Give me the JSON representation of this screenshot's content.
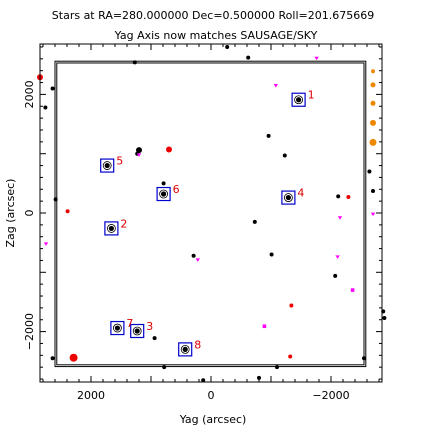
{
  "chart_data": {
    "type": "scatter",
    "title": "Stars at RA=280.000000 Dec=0.500000 Roll=201.675669",
    "subtitle": "Yag Axis now matches SAUSAGE/SKY",
    "xlabel": "Yag (arcsec)",
    "ylabel": "Zag (arcsec)",
    "xlim": [
      2850,
      -2850
    ],
    "ylim": [
      -2850,
      2850
    ],
    "x_ticks": [
      {
        "value": 2000,
        "label": "2000"
      },
      {
        "value": 0,
        "label": "0"
      },
      {
        "value": -2000,
        "label": "−2000"
      }
    ],
    "y_ticks": [
      {
        "value": 2000,
        "label": "2000"
      },
      {
        "value": 0,
        "label": "0"
      },
      {
        "value": -2000,
        "label": "−2000"
      }
    ],
    "detector_outer": {
      "yag": [
        2600,
        -2580
      ],
      "zag": [
        2560,
        -2590
      ]
    },
    "detector_inner": {
      "yag": [
        2570,
        -2550
      ],
      "zag": [
        2530,
        -2560
      ]
    },
    "colors": {
      "guide_star": "#000000",
      "selected_box": "#0000cc",
      "selected_label": "#dd0000",
      "red_star": "#ee0000",
      "magenta_star": "#ff00ff",
      "orange_star": "#ee8800"
    },
    "selected_stars": [
      {
        "id": "1",
        "yag": -1460,
        "zag": 1910
      },
      {
        "id": "2",
        "yag": 1660,
        "zag": -260
      },
      {
        "id": "3",
        "yag": 1230,
        "zag": -1990
      },
      {
        "id": "4",
        "yag": -1290,
        "zag": 260
      },
      {
        "id": "5",
        "yag": 1730,
        "zag": 800
      },
      {
        "id": "6",
        "yag": 790,
        "zag": 320
      },
      {
        "id": "7",
        "yag": 1560,
        "zag": -1940
      },
      {
        "id": "8",
        "yag": 430,
        "zag": -2300
      }
    ],
    "black_stars": [
      {
        "yag": 2640,
        "zag": 2100,
        "size": 2
      },
      {
        "yag": 2760,
        "zag": 1780,
        "size": 2
      },
      {
        "yag": 1270,
        "zag": 2540,
        "size": 2
      },
      {
        "yag": -270,
        "zag": 2800,
        "size": 2
      },
      {
        "yag": -620,
        "zag": 2620,
        "size": 2
      },
      {
        "yag": 1200,
        "zag": 1060,
        "size": 3
      },
      {
        "yag": 1230,
        "zag": 1000,
        "size": 2
      },
      {
        "yag": -960,
        "zag": 1300,
        "size": 2
      },
      {
        "yag": -1230,
        "zag": 970,
        "size": 2
      },
      {
        "yag": -2120,
        "zag": 280,
        "size": 2
      },
      {
        "yag": -2640,
        "zag": 700,
        "size": 2
      },
      {
        "yag": -2700,
        "zag": 370,
        "size": 2
      },
      {
        "yag": 2590,
        "zag": 230,
        "size": 2
      },
      {
        "yag": 790,
        "zag": 500,
        "size": 2
      },
      {
        "yag": -730,
        "zag": -150,
        "size": 2
      },
      {
        "yag": 290,
        "zag": -720,
        "size": 2
      },
      {
        "yag": -1010,
        "zag": -700,
        "size": 2
      },
      {
        "yag": -2070,
        "zag": -1060,
        "size": 2
      },
      {
        "yag": 940,
        "zag": -2110,
        "size": 2
      },
      {
        "yag": 780,
        "zag": -2600,
        "size": 2
      },
      {
        "yag": 130,
        "zag": -2820,
        "size": 2
      },
      {
        "yag": -800,
        "zag": -2780,
        "size": 2
      },
      {
        "yag": -1100,
        "zag": -2600,
        "size": 2
      },
      {
        "yag": -2550,
        "zag": -2450,
        "size": 2
      },
      {
        "yag": -2870,
        "zag": -1660,
        "size": 2
      },
      {
        "yag": -2890,
        "zag": -1770,
        "size": 2
      },
      {
        "yag": 2640,
        "zag": -2450,
        "size": 2
      }
    ],
    "red_stars": [
      {
        "yag": 2850,
        "zag": 2290,
        "size": 3
      },
      {
        "yag": 700,
        "zag": 1070,
        "size": 3
      },
      {
        "yag": 2290,
        "zag": -2440,
        "size": 4
      },
      {
        "yag": -2290,
        "zag": 270,
        "size": 2
      },
      {
        "yag": -1340,
        "zag": -1560,
        "size": 2
      },
      {
        "yag": -1320,
        "zag": -2420,
        "size": 2
      },
      {
        "yag": 2390,
        "zag": 30,
        "size": 2
      }
    ],
    "magenta_stars": [
      {
        "yag": -1760,
        "zag": 2610,
        "shape": "tri"
      },
      {
        "yag": -1080,
        "zag": 2150,
        "shape": "tri"
      },
      {
        "yag": -2150,
        "zag": -80,
        "shape": "tri"
      },
      {
        "yag": -2110,
        "zag": -740,
        "shape": "tri"
      },
      {
        "yag": -2700,
        "zag": -20,
        "shape": "tri"
      },
      {
        "yag": 220,
        "zag": -790,
        "shape": "tri"
      },
      {
        "yag": 1200,
        "zag": 980,
        "shape": "tri"
      },
      {
        "yag": 2750,
        "zag": -520,
        "shape": "tri"
      },
      {
        "yag": -890,
        "zag": -1910,
        "shape": "sq"
      },
      {
        "yag": -2360,
        "zag": -1300,
        "shape": "sq"
      }
    ],
    "orange_stars": [
      {
        "yag": -2700,
        "zag": 2390,
        "size": 2
      },
      {
        "yag": -2700,
        "zag": 2160,
        "size": 2.5
      },
      {
        "yag": -2700,
        "zag": 1850,
        "size": 2.5
      },
      {
        "yag": -2700,
        "zag": 1520,
        "size": 3
      },
      {
        "yag": -2700,
        "zag": 1190,
        "size": 3.5
      }
    ]
  }
}
